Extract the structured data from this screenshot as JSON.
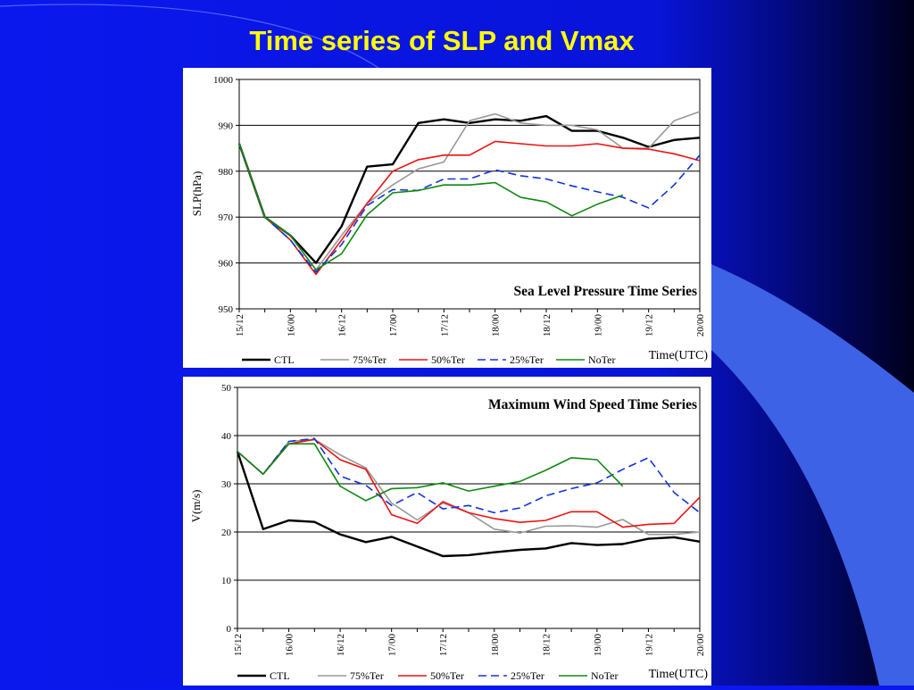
{
  "slide": {
    "title": "Time series of SLP and Vmax"
  },
  "colors": {
    "background": "#0a18ee",
    "title": "#ffff00",
    "CTL": "#000000",
    "75%Ter": "#999999",
    "50%Ter": "#ee1111",
    "25%Ter": "#1133dd",
    "NoTer": "#118811"
  },
  "chart_data": [
    {
      "type": "line",
      "title": "Sea Level Pressure Time Series",
      "ylabel": "SLP(hPa)",
      "xlabel": "Time(UTC)",
      "ylim": [
        950,
        1000
      ],
      "yticks": [
        950,
        960,
        970,
        980,
        990,
        1000
      ],
      "grid": true,
      "legend_position": "bottom",
      "x": [
        "15/12",
        "15/18",
        "16/00",
        "16/06",
        "16/12",
        "16/18",
        "17/00",
        "17/06",
        "17/12",
        "17/18",
        "18/00",
        "18/06",
        "18/12",
        "18/18",
        "19/00",
        "19/06",
        "19/12",
        "19/18",
        "20/00"
      ],
      "x_tick_labels": [
        "15/12",
        "16/00",
        "16/12",
        "17/00",
        "17/12",
        "18/00",
        "18/12",
        "19/00",
        "19/12",
        "20/00"
      ],
      "series": [
        {
          "name": "CTL",
          "style": "solid",
          "values": [
            986,
            970,
            966,
            960,
            968,
            981,
            981.5,
            990.5,
            991.3,
            990.5,
            991.3,
            991,
            992,
            988.8,
            988.8,
            987.3,
            985.3,
            986.8,
            987.3
          ]
        },
        {
          "name": "75%Ter",
          "style": "solid",
          "values": [
            986,
            970,
            966,
            958.5,
            966,
            973,
            977,
            980.5,
            982,
            991,
            992.5,
            990.5,
            990,
            990,
            989,
            985,
            985,
            991,
            993
          ]
        },
        {
          "name": "50%Ter",
          "style": "solid",
          "values": [
            986,
            970,
            965,
            957.5,
            965,
            973,
            980,
            982.5,
            983.5,
            983.5,
            986.5,
            986,
            985.5,
            985.5,
            986,
            985,
            984.8,
            983.8,
            982.3
          ]
        },
        {
          "name": "25%Ter",
          "style": "dashed",
          "values": [
            986,
            970,
            965,
            958,
            964,
            972.5,
            976,
            975.8,
            978.3,
            978.3,
            980.3,
            979,
            978.3,
            976.8,
            975.5,
            974.3,
            972,
            977,
            983.5
          ]
        },
        {
          "name": "NoTer",
          "style": "solid",
          "values": [
            986,
            970,
            966,
            958.5,
            962,
            970.5,
            975.3,
            975.8,
            977,
            977,
            977.5,
            974.3,
            973.3,
            970.3,
            972.8,
            974.8,
            null,
            null,
            null
          ]
        }
      ]
    },
    {
      "type": "line",
      "title": "Maximum Wind Speed Time Series",
      "ylabel": "V(m/s)",
      "xlabel": "Time(UTC)",
      "ylim": [
        0,
        50
      ],
      "yticks": [
        0,
        10,
        20,
        30,
        40,
        50
      ],
      "grid": true,
      "legend_position": "bottom",
      "x": [
        "15/12",
        "15/18",
        "16/00",
        "16/06",
        "16/12",
        "16/18",
        "17/00",
        "17/06",
        "17/12",
        "17/18",
        "18/00",
        "18/06",
        "18/12",
        "18/18",
        "19/00",
        "19/06",
        "19/12",
        "19/18",
        "20/00"
      ],
      "x_tick_labels": [
        "15/12",
        "16/00",
        "16/12",
        "17/00",
        "17/12",
        "18/00",
        "18/12",
        "19/00",
        "19/12",
        "20/00"
      ],
      "series": [
        {
          "name": "CTL",
          "style": "solid",
          "values": [
            36.7,
            20.6,
            22.4,
            22.1,
            19.5,
            17.9,
            19,
            17,
            15,
            15.2,
            15.8,
            16.3,
            16.6,
            17.7,
            17.3,
            17.5,
            18.6,
            18.9,
            18
          ]
        },
        {
          "name": "75%Ter",
          "style": "solid",
          "values": [
            36.7,
            32,
            38.8,
            39.2,
            36,
            33.3,
            26,
            22.5,
            26,
            24,
            20.6,
            19.8,
            21.2,
            21.3,
            21,
            22.6,
            19.5,
            19.5,
            20
          ]
        },
        {
          "name": "50%Ter",
          "style": "solid",
          "values": [
            36.7,
            32,
            38.3,
            39.2,
            35,
            33,
            23.6,
            21.8,
            26.3,
            24,
            22.8,
            22,
            22.4,
            24.2,
            24.2,
            21,
            21.6,
            21.8,
            27.2
          ]
        },
        {
          "name": "25%Ter",
          "style": "dashed",
          "values": [
            36.7,
            32,
            38.8,
            39.4,
            31.6,
            29.7,
            25.5,
            28.2,
            24.8,
            25.5,
            24,
            25,
            27.5,
            29,
            30.2,
            33,
            35.4,
            28.2,
            24
          ]
        },
        {
          "name": "NoTer",
          "style": "solid",
          "values": [
            36.7,
            32,
            38.3,
            38.3,
            29.5,
            26.5,
            29,
            29.2,
            30.2,
            28.5,
            29.5,
            30.5,
            32.8,
            35.4,
            35,
            29.5,
            null,
            null,
            null
          ]
        }
      ]
    }
  ]
}
